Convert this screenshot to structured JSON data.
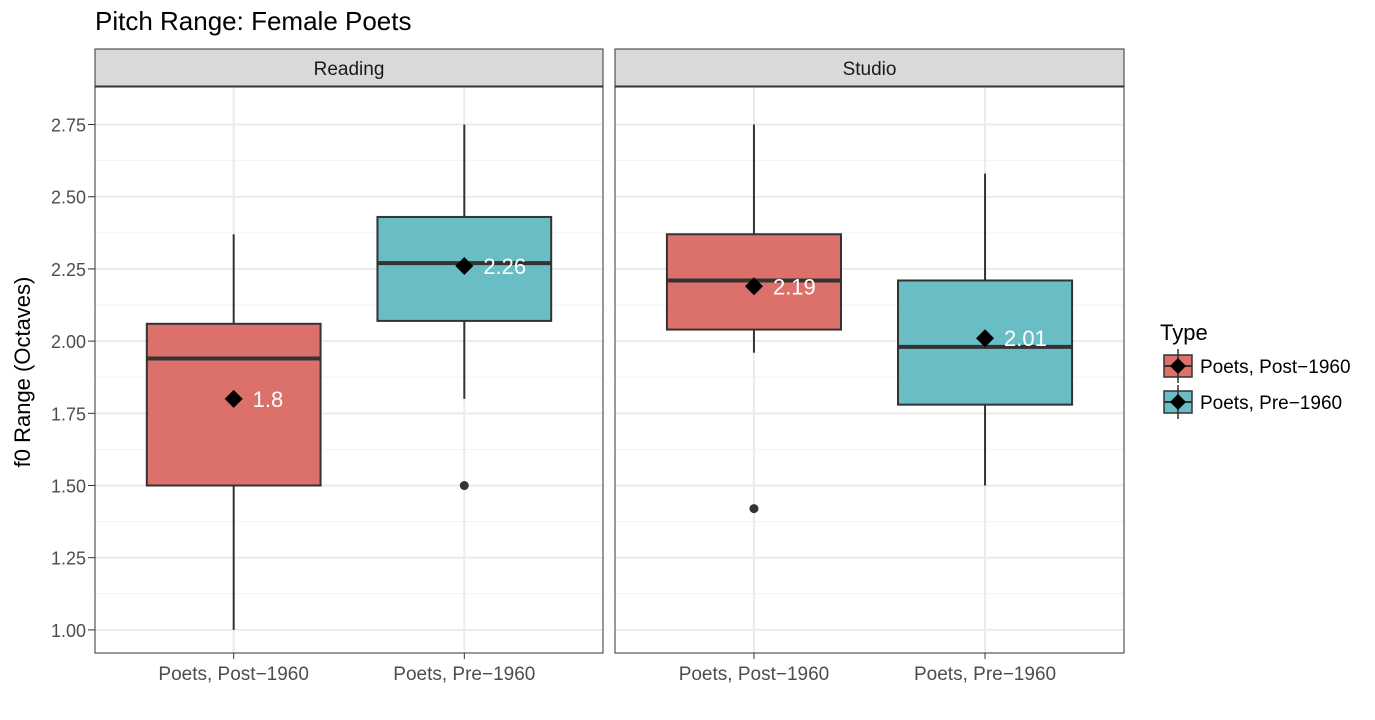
{
  "chart_data": {
    "type": "boxplot",
    "title": "Pitch Range: Female Poets",
    "ylabel": "f0 Range (Octaves)",
    "xlabel": "",
    "ylim": [
      0.92,
      2.88
    ],
    "yticks": [
      "1.00",
      "1.25",
      "1.50",
      "1.75",
      "2.00",
      "2.25",
      "2.50",
      "2.75"
    ],
    "ytick_values": [
      1.0,
      1.25,
      1.5,
      1.75,
      2.0,
      2.25,
      2.5,
      2.75
    ],
    "grid": true,
    "legend": {
      "title": "Type",
      "position": "right",
      "entries": [
        "Poets, Post−1960",
        "Poets, Pre−1960"
      ]
    },
    "colors": {
      "Poets, Post−1960": "#dc716b",
      "Poets, Pre−1960": "#69bdc4"
    },
    "facets": [
      {
        "name": "Reading",
        "categories": [
          "Poets, Post−1960",
          "Poets, Pre−1960"
        ],
        "boxes": [
          {
            "category": "Poets, Post−1960",
            "whisker_low": 1.0,
            "q1": 1.5,
            "median": 1.94,
            "q3": 2.06,
            "whisker_high": 2.37,
            "mean": 1.8,
            "mean_label": "1.8",
            "outliers": []
          },
          {
            "category": "Poets, Pre−1960",
            "whisker_low": 1.8,
            "q1": 2.07,
            "median": 2.27,
            "q3": 2.43,
            "whisker_high": 2.75,
            "mean": 2.26,
            "mean_label": "2.26",
            "outliers": [
              1.5
            ]
          }
        ]
      },
      {
        "name": "Studio",
        "categories": [
          "Poets, Post−1960",
          "Poets, Pre−1960"
        ],
        "boxes": [
          {
            "category": "Poets, Post−1960",
            "whisker_low": 1.96,
            "q1": 2.04,
            "median": 2.21,
            "q3": 2.37,
            "whisker_high": 2.75,
            "mean": 2.19,
            "mean_label": "2.19",
            "outliers": [
              1.42
            ]
          },
          {
            "category": "Poets, Pre−1960",
            "whisker_low": 1.5,
            "q1": 1.78,
            "median": 1.98,
            "q3": 2.21,
            "whisker_high": 2.58,
            "mean": 2.01,
            "mean_label": "2.01",
            "outliers": []
          }
        ]
      }
    ]
  }
}
